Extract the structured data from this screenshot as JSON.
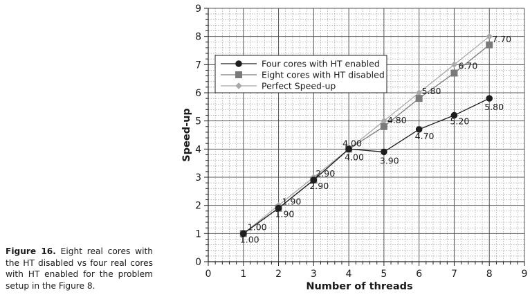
{
  "caption": {
    "lead": "Figure 16.",
    "text": " Eight real cores with the HT disabled vs four real cores with HT enabled for the problem setup in the Figure 8."
  },
  "chart_data": {
    "type": "line",
    "xlabel": "Number of threads",
    "ylabel": "Speed-up",
    "xlim": [
      0,
      9
    ],
    "ylim": [
      0,
      9
    ],
    "xticks": [
      "0",
      "1",
      "2",
      "3",
      "4",
      "5",
      "6",
      "7",
      "8",
      "9"
    ],
    "yticks": [
      "0",
      "1",
      "2",
      "3",
      "4",
      "5",
      "6",
      "7",
      "8",
      "9"
    ],
    "grid": true,
    "legend_position": "upper-left",
    "series": [
      {
        "name": "Four cores with HT enabled",
        "color": "#1e1e1e",
        "marker": "circle",
        "x": [
          1,
          2,
          3,
          4,
          5,
          6,
          7,
          8
        ],
        "y": [
          1.0,
          1.9,
          2.9,
          4.0,
          3.9,
          4.7,
          5.2,
          5.8
        ],
        "labels": [
          "1.00",
          "1.90",
          "2.90",
          "4.00",
          "3.90",
          "4.70",
          "5.20",
          "5.80"
        ]
      },
      {
        "name": "Eight cores with HT disabled",
        "color": "#7a7a7a",
        "marker": "square",
        "x": [
          1,
          2,
          3,
          4,
          5,
          6,
          7,
          8
        ],
        "y": [
          1.0,
          1.9,
          2.9,
          4.0,
          4.8,
          5.8,
          6.7,
          7.7
        ],
        "labels": [
          "1.00",
          "1.90",
          "2.90",
          "4.00",
          "4.80",
          "5.80",
          "6.70",
          "7.70"
        ]
      },
      {
        "name": "Perfect Speed-up",
        "color": "#a8a8a8",
        "marker": "diamond",
        "x": [
          1,
          2,
          3,
          4,
          5,
          6,
          7,
          8
        ],
        "y": [
          1,
          2,
          3,
          4,
          5,
          6,
          7,
          8
        ]
      }
    ]
  }
}
